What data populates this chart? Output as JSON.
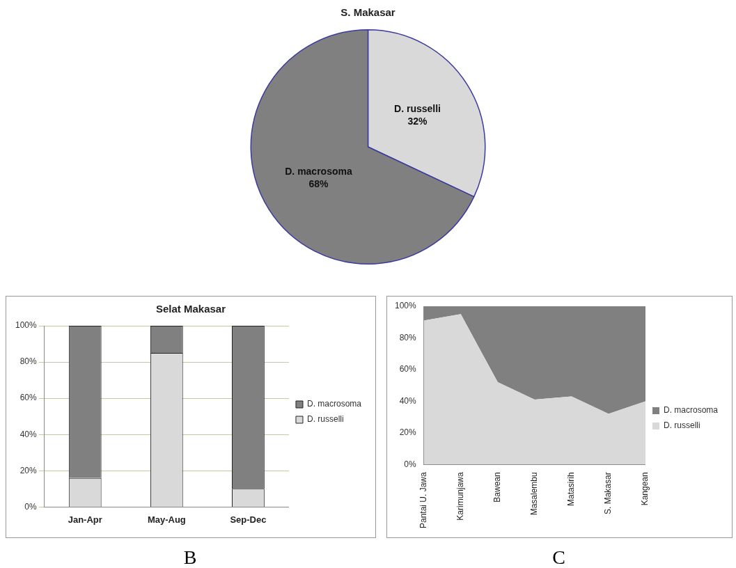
{
  "chart_data": [
    {
      "type": "pie",
      "title": "S. Makasar",
      "categories": [
        "D. russelli",
        "D. macrosoma"
      ],
      "values": [
        32,
        68
      ],
      "colors": [
        "#d9d9d9",
        "#808080"
      ],
      "value_labels": [
        "32%",
        "68%"
      ],
      "legend": false
    },
    {
      "type": "bar",
      "title": "Selat Makasar",
      "categories": [
        "Jan-Apr",
        "May-Aug",
        "Sep-Dec"
      ],
      "stacked": true,
      "series": [
        {
          "name": "D. russelli",
          "color": "#d9d9d9",
          "values": [
            16,
            85,
            10
          ]
        },
        {
          "name": "D. macrosoma",
          "color": "#808080",
          "values": [
            84,
            15,
            90
          ]
        }
      ],
      "ylim": [
        0,
        100
      ],
      "yticks": [
        {
          "value": 0,
          "label": "0%"
        },
        {
          "value": 20,
          "label": "20%"
        },
        {
          "value": 40,
          "label": "40%"
        },
        {
          "value": 60,
          "label": "60%"
        },
        {
          "value": 80,
          "label": "80%"
        },
        {
          "value": 100,
          "label": "100%"
        }
      ],
      "grid": "y",
      "legend": "right",
      "annotations": [
        "B"
      ]
    },
    {
      "type": "area",
      "categories": [
        "Pantai U. Jawa",
        "Karimunjawa",
        "Bawean",
        "Masalembu",
        "Matasirih",
        "S. Makasar",
        "Kangean"
      ],
      "stacked": true,
      "series": [
        {
          "name": "D. russelli",
          "color": "#d9d9d9",
          "values": [
            91,
            95,
            52,
            41,
            43,
            32,
            40
          ]
        },
        {
          "name": "D. macrosoma",
          "color": "#808080",
          "values": [
            9,
            5,
            48,
            59,
            57,
            68,
            60
          ]
        }
      ],
      "ylim": [
        0,
        100
      ],
      "yticks": [
        {
          "value": 0,
          "label": "0%"
        },
        {
          "value": 20,
          "label": "20%"
        },
        {
          "value": 40,
          "label": "40%"
        },
        {
          "value": 60,
          "label": "60%"
        },
        {
          "value": 80,
          "label": "80%"
        },
        {
          "value": 100,
          "label": "100%"
        }
      ],
      "grid": false,
      "legend": "right",
      "annotations": [
        "C"
      ]
    }
  ]
}
